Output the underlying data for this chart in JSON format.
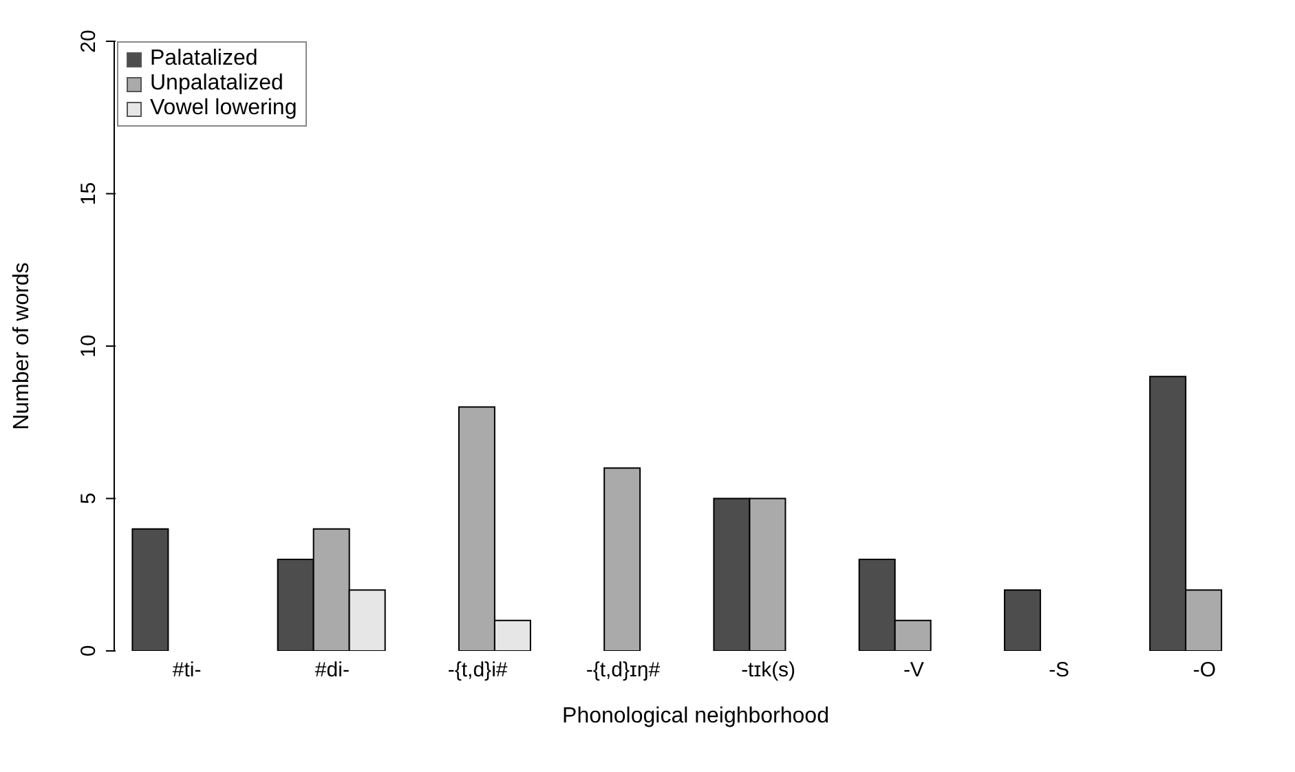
{
  "chart_data": {
    "type": "bar",
    "xlabel": "Phonological neighborhood",
    "ylabel": "Number of words",
    "categories": [
      "#ti-",
      "#di-",
      "-{t,d}i#",
      "-{t,d}ɪŋ#",
      "-tɪk(s)",
      "-V",
      "-S",
      "-O"
    ],
    "series": [
      {
        "name": "Palatalized",
        "color": "#4d4d4d",
        "values": [
          4,
          3,
          0,
          0,
          5,
          3,
          2,
          9
        ]
      },
      {
        "name": "Unpalatalized",
        "color": "#aaaaaa",
        "values": [
          0,
          4,
          8,
          6,
          5,
          1,
          0,
          2
        ]
      },
      {
        "name": "Vowel lowering",
        "color": "#e6e6e6",
        "values": [
          0,
          2,
          1,
          0,
          0,
          0,
          0,
          0
        ]
      }
    ],
    "ylim": [
      0,
      20
    ],
    "yticks": [
      0,
      5,
      10,
      15,
      20
    ],
    "grid": false,
    "legend": "top left"
  }
}
